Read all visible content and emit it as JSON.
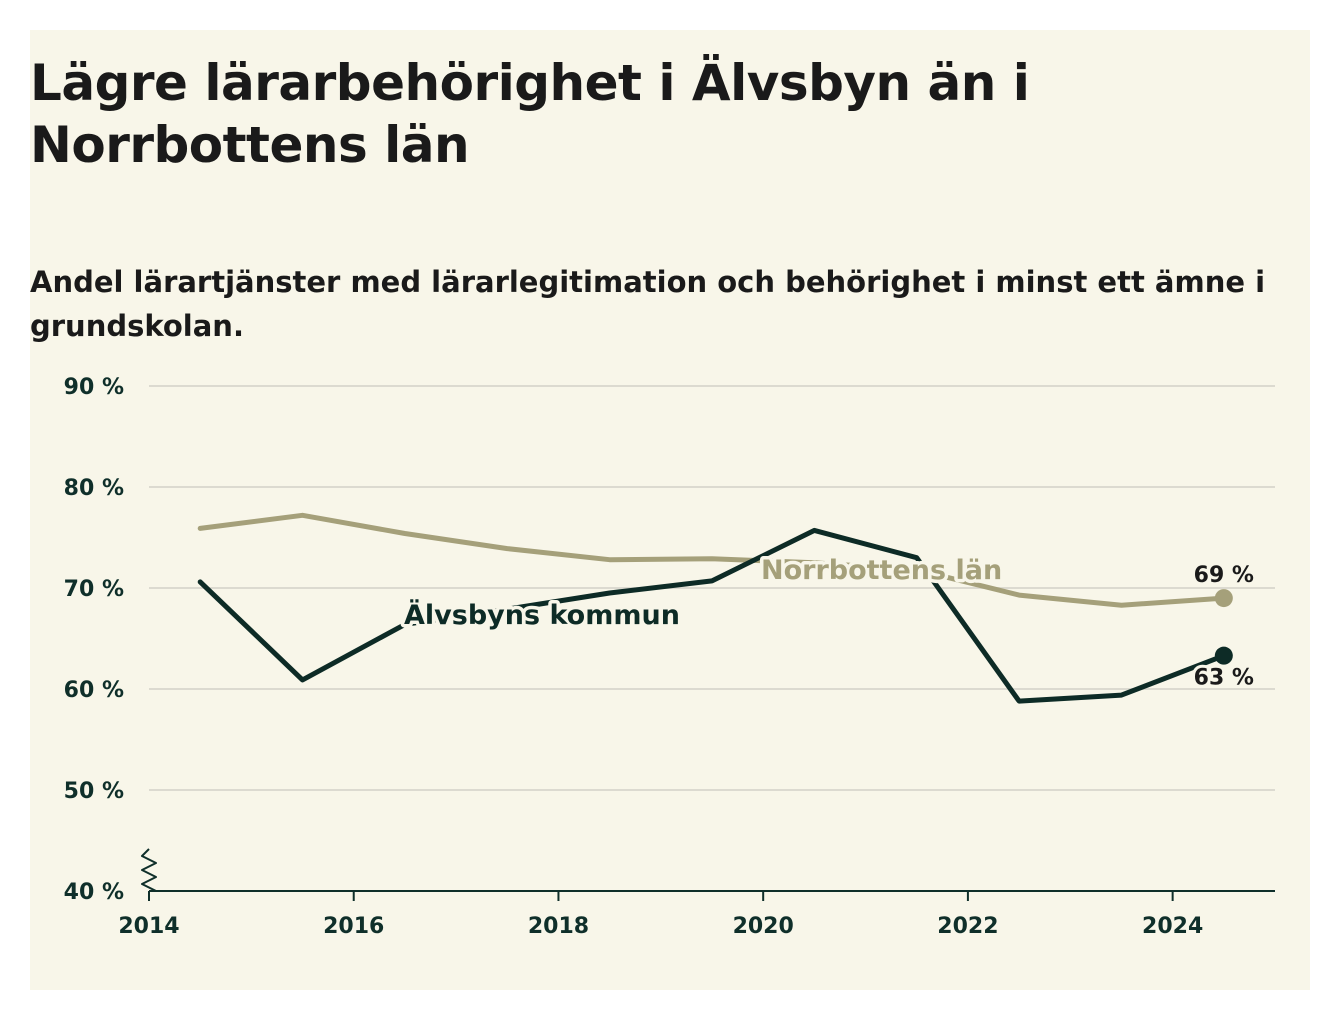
{
  "title": "Lägre lärarbehörighet i Älvsbyn än i Norrbottens län",
  "subtitle": "Andel lärartjänster med lärarlegitimation och behörighet i minst ett ämne i grundskolan.",
  "colors": {
    "background": "#f8f6e9",
    "alvsbyn": "#0d2b26",
    "norrbotten": "#a5a07a",
    "grid": "#dcdad0",
    "axis": "#0f2f2a"
  },
  "chart_data": {
    "type": "line",
    "title": "Lägre lärarbehörighet i Älvsbyn än i Norrbottens län",
    "subtitle": "Andel lärartjänster med lärarlegitimation och behörighet i minst ett ämne i grundskolan.",
    "x": [
      2014.5,
      2015.5,
      2016.5,
      2017.5,
      2018.5,
      2019.5,
      2020.5,
      2021.5,
      2022.5,
      2023.5,
      2024.5
    ],
    "xlim": [
      2014,
      2025
    ],
    "xticks": [
      2014,
      2016,
      2018,
      2020,
      2022,
      2024
    ],
    "xtick_labels": [
      "2014",
      "2016",
      "2018",
      "2020",
      "2022",
      "2024"
    ],
    "ylim": [
      40,
      90
    ],
    "yticks": [
      40,
      50,
      60,
      70,
      80,
      90
    ],
    "ytick_labels": [
      "40 %",
      "50 %",
      "60 %",
      "70 %",
      "80 %",
      "90 %"
    ],
    "grid": true,
    "axis_break": true,
    "series": [
      {
        "name": "Norrbottens län",
        "color": "#a5a07a",
        "values": [
          75.9,
          77.2,
          75.4,
          73.9,
          72.8,
          72.9,
          72.5,
          71.8,
          69.3,
          68.3,
          69.0
        ],
        "end_label": "69 %"
      },
      {
        "name": "Älvsbyns kommun",
        "color": "#0d2b26",
        "values": [
          70.6,
          60.9,
          66.4,
          67.9,
          69.5,
          70.7,
          75.7,
          73.0,
          58.8,
          59.4,
          63.3
        ],
        "end_label": "63 %"
      }
    ]
  }
}
